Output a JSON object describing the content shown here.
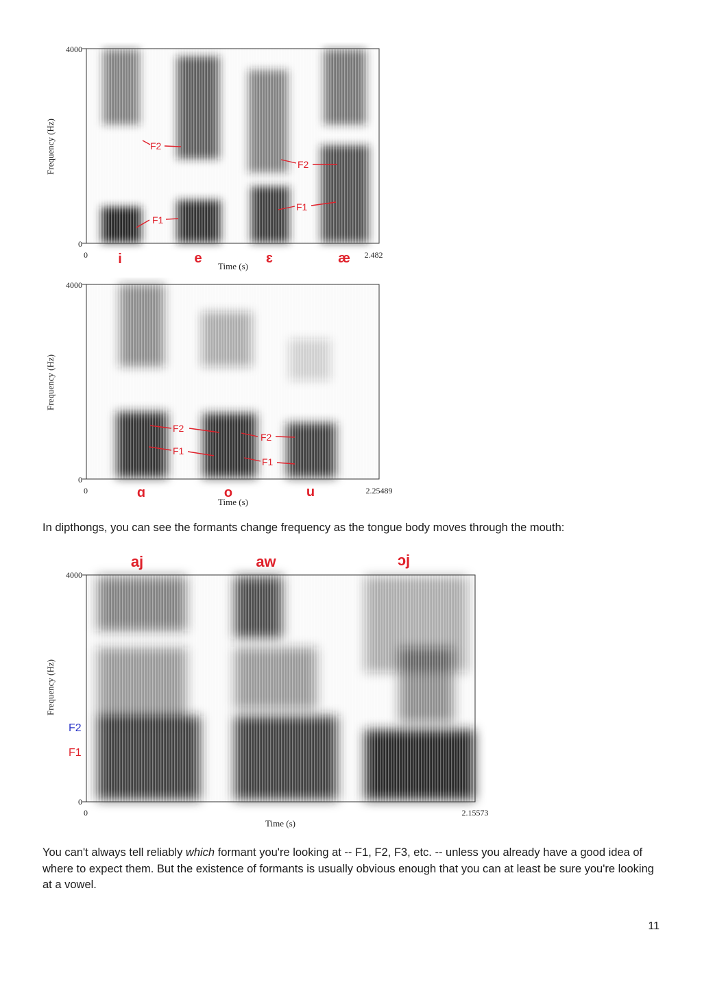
{
  "figure1": {
    "y_label": "Frequency (Hz)",
    "y_top": "4000",
    "y_bottom": "0",
    "x_start": "0",
    "x_end": "2.482",
    "x_label": "Time (s)",
    "vowels": [
      "i",
      "e",
      "ɛ",
      "æ"
    ],
    "annotations": [
      "F2",
      "F1",
      "F2",
      "F1"
    ],
    "colors": {
      "label": "#e0202a",
      "spectrogram": "#1e1e1e"
    }
  },
  "figure2": {
    "y_label": "Frequency (Hz)",
    "y_top": "4000",
    "y_bottom": "0",
    "x_start": "0",
    "x_end": "2.25489",
    "x_label": "Time (s)",
    "vowels": [
      "ɑ",
      "o",
      "u"
    ],
    "annotations": [
      "F2",
      "F1",
      "F2",
      "F1"
    ]
  },
  "text1": "In dipthongs, you can see the formants change frequency as the tongue body moves through the mouth:",
  "figure3": {
    "y_label": "Frequency (Hz)",
    "y_top": "4000",
    "y_bottom": "0",
    "x_start": "0",
    "x_end": "2.15573",
    "x_label": "Time (s)",
    "diphthongs": [
      "aj",
      "aw",
      "ɔj"
    ],
    "formant_f2": "F2",
    "formant_f1": "F1",
    "colors": {
      "f2": "#2a35c8",
      "f1": "#e0202a"
    }
  },
  "text2": {
    "part1": "You can't always tell reliably ",
    "emph": "which",
    "part2": " formant you're looking at -- F1, F2, F3, etc. -- unless you already have a good idea of where to expect them. But the existence of formants is usually obvious enough that you can at  least be sure you're looking at a vowel."
  },
  "page_number": "11"
}
